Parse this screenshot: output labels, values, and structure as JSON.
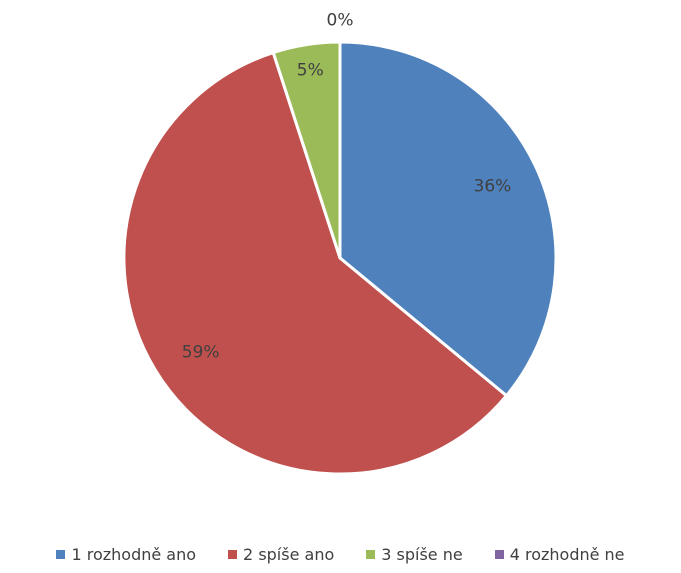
{
  "chart_data": {
    "type": "pie",
    "title": "",
    "categories": [
      "1 rozhodně ano",
      "2 spíše ano",
      "3 spíše ne",
      "4 rozhodně ne"
    ],
    "values": [
      36,
      59,
      5,
      0
    ],
    "labels": [
      "36%",
      "59%",
      "5%",
      "0%"
    ],
    "colors": [
      "#4F81BD",
      "#C0504D",
      "#9BBB59",
      "#8064A2"
    ],
    "legend_position": "bottom"
  }
}
